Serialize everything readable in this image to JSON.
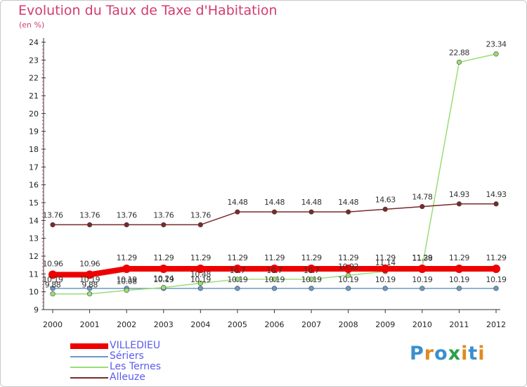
{
  "header": {
    "title": "Evolution du Taux de Taxe d'Habitation",
    "subtitle": "(en %)"
  },
  "colors": {
    "title": "#d23c6e",
    "axis": "#d23c6e",
    "legend_text": "#5a5af0"
  },
  "chart_data": {
    "type": "line",
    "title": "Evolution du Taux de Taxe d'Habitation",
    "subtitle": "(en %)",
    "xlabel": "",
    "ylabel": "",
    "ylim": [
      9,
      24
    ],
    "yticks": [
      "9",
      "10",
      "11",
      "12",
      "13",
      "14",
      "15",
      "16",
      "17",
      "18",
      "19",
      "20",
      "21",
      "22",
      "23",
      "24"
    ],
    "categories": [
      "2000",
      "2001",
      "2002",
      "2003",
      "2004",
      "2005",
      "2006",
      "2007",
      "2008",
      "2009",
      "2010",
      "2011",
      "2012"
    ],
    "grid": false,
    "legend_position": "bottom-left",
    "series": [
      {
        "name": "VILLEDIEU",
        "color": "#ee0000",
        "values": [
          10.96,
          10.96,
          11.29,
          11.29,
          11.29,
          11.29,
          11.29,
          11.29,
          11.29,
          11.29,
          11.29,
          11.29,
          11.29
        ],
        "labels": [
          "10.96",
          "10.96",
          "11.29",
          "11.29",
          "11.29",
          "11.29",
          "11.29",
          "11.29",
          "11.29",
          "11.29",
          "11.29",
          "11.29",
          "11.29"
        ]
      },
      {
        "name": "Sériers",
        "color": "#6b9ac4",
        "values": [
          10.19,
          10.19,
          10.19,
          10.19,
          10.19,
          10.19,
          10.19,
          10.19,
          10.19,
          10.19,
          10.19,
          10.19,
          10.19
        ],
        "labels": [
          "10.19",
          "10.19",
          "10.19",
          "10.19",
          "10.19",
          "10.19",
          "10.19",
          "10.19",
          "10.19",
          "10.19",
          "10.19",
          "10.19",
          "10.19"
        ]
      },
      {
        "name": "Les Ternes",
        "color": "#99dd77",
        "values": [
          9.88,
          9.88,
          10.08,
          10.24,
          10.48,
          10.7,
          10.7,
          10.7,
          10.92,
          11.14,
          11.38,
          22.88,
          23.34
        ],
        "labels": [
          "9.88",
          "9.88",
          "10.08",
          "10.24",
          "10.48",
          "10.7",
          "10.7",
          "10.7",
          "10.92",
          "11.14",
          "11.38",
          "22.88",
          "23.34"
        ]
      },
      {
        "name": "Alleuze",
        "color": "#7a2a2a",
        "values": [
          13.76,
          13.76,
          13.76,
          13.76,
          13.76,
          14.48,
          14.48,
          14.48,
          14.48,
          14.63,
          14.78,
          14.93,
          14.93
        ],
        "labels": [
          "13.76",
          "13.76",
          "13.76",
          "13.76",
          "13.76",
          "14.48",
          "14.48",
          "14.48",
          "14.48",
          "14.63",
          "14.78",
          "14.93",
          "14.93"
        ]
      }
    ]
  },
  "legend": [
    {
      "label": "VILLEDIEU",
      "color": "#ee0000"
    },
    {
      "label": "Sériers",
      "color": "#6b9ac4"
    },
    {
      "label": "Les Ternes",
      "color": "#99dd77"
    },
    {
      "label": "Alleuze",
      "color": "#7a2a2a"
    }
  ],
  "logo": {
    "letters": [
      "P",
      "r",
      "o",
      "x",
      "i",
      "t",
      "i"
    ],
    "colors": [
      "#3a8fd0",
      "#e08a1e",
      "#3a8fd0",
      "#2aa14a",
      "#e08a1e",
      "#3a8fd0",
      "#e08a1e"
    ]
  }
}
